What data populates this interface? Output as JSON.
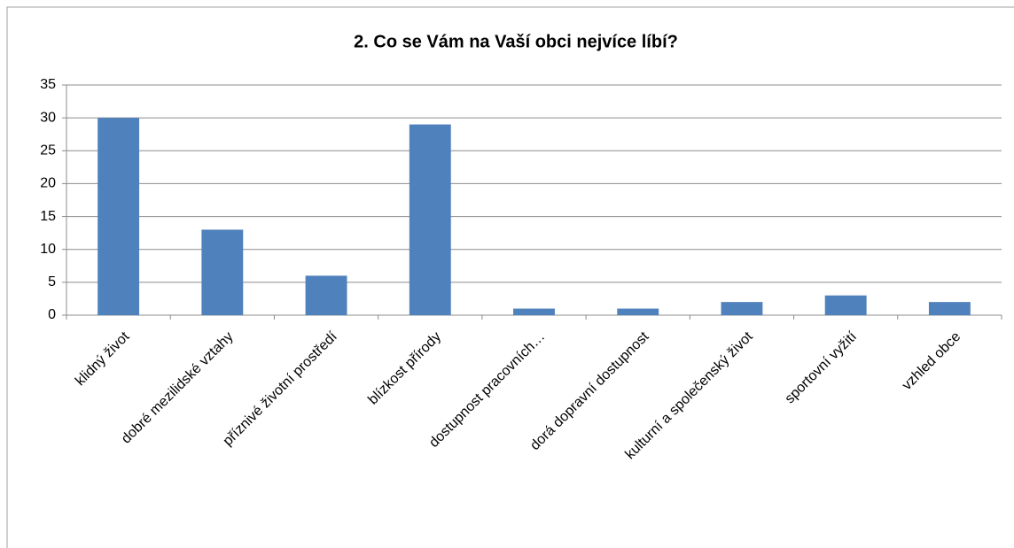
{
  "chart_data": {
    "type": "bar",
    "title": "2. Co se Vám na Vaší obci nejvíce líbí?",
    "categories": [
      "klidný život",
      "dobré mezilidské vztahy",
      "příznivé životní prostředí",
      "blízkost přírody",
      "dostupnost pracovních…",
      "dorá dopravní dostupnost",
      "kulturní a společenský život",
      "sportovní vyžití",
      "vzhled obce"
    ],
    "values": [
      30,
      13,
      6,
      29,
      1,
      1,
      2,
      3,
      2
    ],
    "color": "#4f81bd",
    "ylim": [
      0,
      35
    ],
    "yticks": [
      0,
      5,
      10,
      15,
      20,
      25,
      30,
      35
    ],
    "grid": true
  }
}
